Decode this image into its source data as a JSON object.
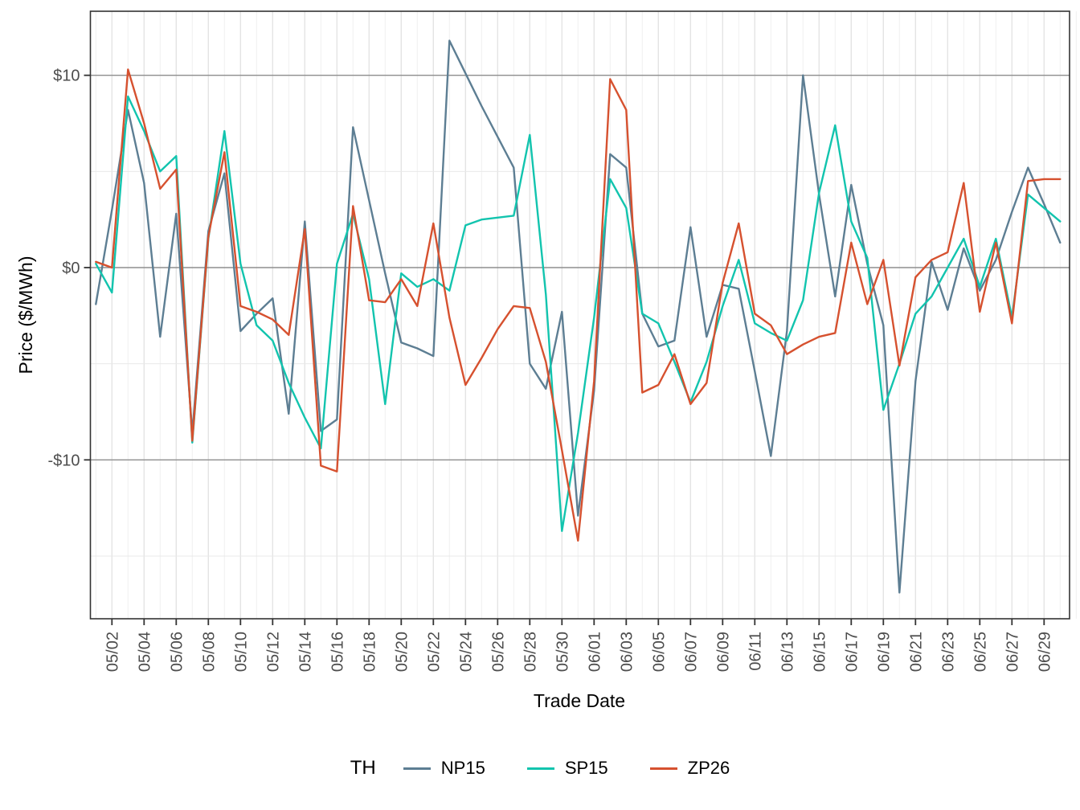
{
  "y_axis": {
    "label": "Price ($/MWh)",
    "ticks": [
      {
        "text": "$10",
        "value": 10
      },
      {
        "text": "$0",
        "value": 0
      },
      {
        "text": "-$10",
        "value": -10
      }
    ],
    "minor_values": [
      5,
      -5,
      -15
    ]
  },
  "x_axis": {
    "label": "Trade Date"
  },
  "legend": {
    "title": "TH",
    "entries": [
      {
        "label": "NP15",
        "color": "#5d7e93"
      },
      {
        "label": "SP15",
        "color": "#12c4ae"
      },
      {
        "label": "ZP26",
        "color": "#d6512f"
      }
    ]
  },
  "chart_data": {
    "type": "line",
    "title": "",
    "xlabel": "Trade Date",
    "ylabel": "Price ($/MWh)",
    "ylim": [
      -18.3,
      13.3
    ],
    "grid": "on",
    "legend_position": "bottom",
    "x": [
      "05/01",
      "05/02",
      "05/03",
      "05/04",
      "05/05",
      "05/06",
      "05/07",
      "05/08",
      "05/09",
      "05/10",
      "05/11",
      "05/12",
      "05/13",
      "05/14",
      "05/15",
      "05/16",
      "05/17",
      "05/18",
      "05/19",
      "05/20",
      "05/21",
      "05/22",
      "05/23",
      "05/24",
      "05/25",
      "05/26",
      "05/27",
      "05/28",
      "05/29",
      "05/30",
      "05/31",
      "06/01",
      "06/02",
      "06/03",
      "06/04",
      "06/05",
      "06/06",
      "06/07",
      "06/08",
      "06/09",
      "06/10",
      "06/11",
      "06/12",
      "06/13",
      "06/14",
      "06/15",
      "06/16",
      "06/17",
      "06/18",
      "06/19",
      "06/20",
      "06/21",
      "06/22",
      "06/23",
      "06/24",
      "06/25",
      "06/26",
      "06/27",
      "06/28",
      "06/29",
      "06/30"
    ],
    "tick_every": 2,
    "tick_start_index": 1,
    "series": [
      {
        "name": "NP15",
        "color": "#5d7e93",
        "values": [
          -1.9,
          3.0,
          8.2,
          4.4,
          -3.6,
          2.8,
          -8.6,
          1.9,
          4.9,
          -3.3,
          -2.4,
          -1.6,
          -7.6,
          2.4,
          -8.5,
          -7.9,
          7.3,
          3.5,
          -0.3,
          -3.9,
          -4.2,
          -4.6,
          11.8,
          10.1,
          8.4,
          6.8,
          5.2,
          -5.0,
          -6.3,
          -2.3,
          -12.9,
          -6.4,
          5.9,
          5.2,
          -2.4,
          -4.1,
          -3.8,
          2.1,
          -3.6,
          -0.9,
          -1.1,
          -5.4,
          -9.8,
          -3.3,
          10.0,
          3.8,
          -1.5,
          4.3,
          0.2,
          -3.0,
          -16.9,
          -5.9,
          0.3,
          -2.2,
          1.0,
          -1.2,
          0.4,
          2.9,
          5.2,
          3.3,
          1.3
        ]
      },
      {
        "name": "SP15",
        "color": "#12c4ae",
        "values": [
          0.2,
          -1.3,
          8.9,
          7.1,
          5.0,
          5.8,
          -9.1,
          1.5,
          7.1,
          0.2,
          -3.0,
          -3.8,
          -6.0,
          -7.8,
          -9.4,
          0.2,
          2.8,
          -0.6,
          -7.1,
          -0.3,
          -1.0,
          -0.6,
          -1.2,
          2.2,
          2.5,
          2.6,
          2.7,
          6.9,
          -1.4,
          -13.7,
          -8.6,
          -2.6,
          4.6,
          3.1,
          -2.4,
          -2.9,
          -4.9,
          -7.0,
          -4.9,
          -2.0,
          0.4,
          -2.9,
          -3.4,
          -3.8,
          -1.7,
          3.9,
          7.4,
          2.4,
          0.5,
          -7.4,
          -5.0,
          -2.4,
          -1.5,
          0.0,
          1.5,
          -1.0,
          1.5,
          -2.6,
          3.8,
          3.1,
          2.4
        ]
      },
      {
        "name": "ZP26",
        "color": "#d6512f",
        "values": [
          0.3,
          0.0,
          10.3,
          7.5,
          4.1,
          5.1,
          -9.0,
          1.6,
          6.0,
          -2.0,
          -2.3,
          -2.7,
          -3.5,
          2.0,
          -10.3,
          -10.6,
          3.2,
          -1.7,
          -1.8,
          -0.6,
          -2.0,
          2.3,
          -2.6,
          -6.1,
          -4.7,
          -3.2,
          -2.0,
          -2.1,
          -4.9,
          -9.5,
          -14.2,
          -5.9,
          9.8,
          8.2,
          -6.5,
          -6.1,
          -4.5,
          -7.1,
          -6.0,
          -0.8,
          2.3,
          -2.4,
          -3.0,
          -4.5,
          -4.0,
          -3.6,
          -3.4,
          1.3,
          -1.9,
          0.4,
          -5.1,
          -0.5,
          0.4,
          0.8,
          4.4,
          -2.3,
          1.3,
          -2.9,
          4.5,
          4.6,
          4.6
        ]
      }
    ]
  }
}
